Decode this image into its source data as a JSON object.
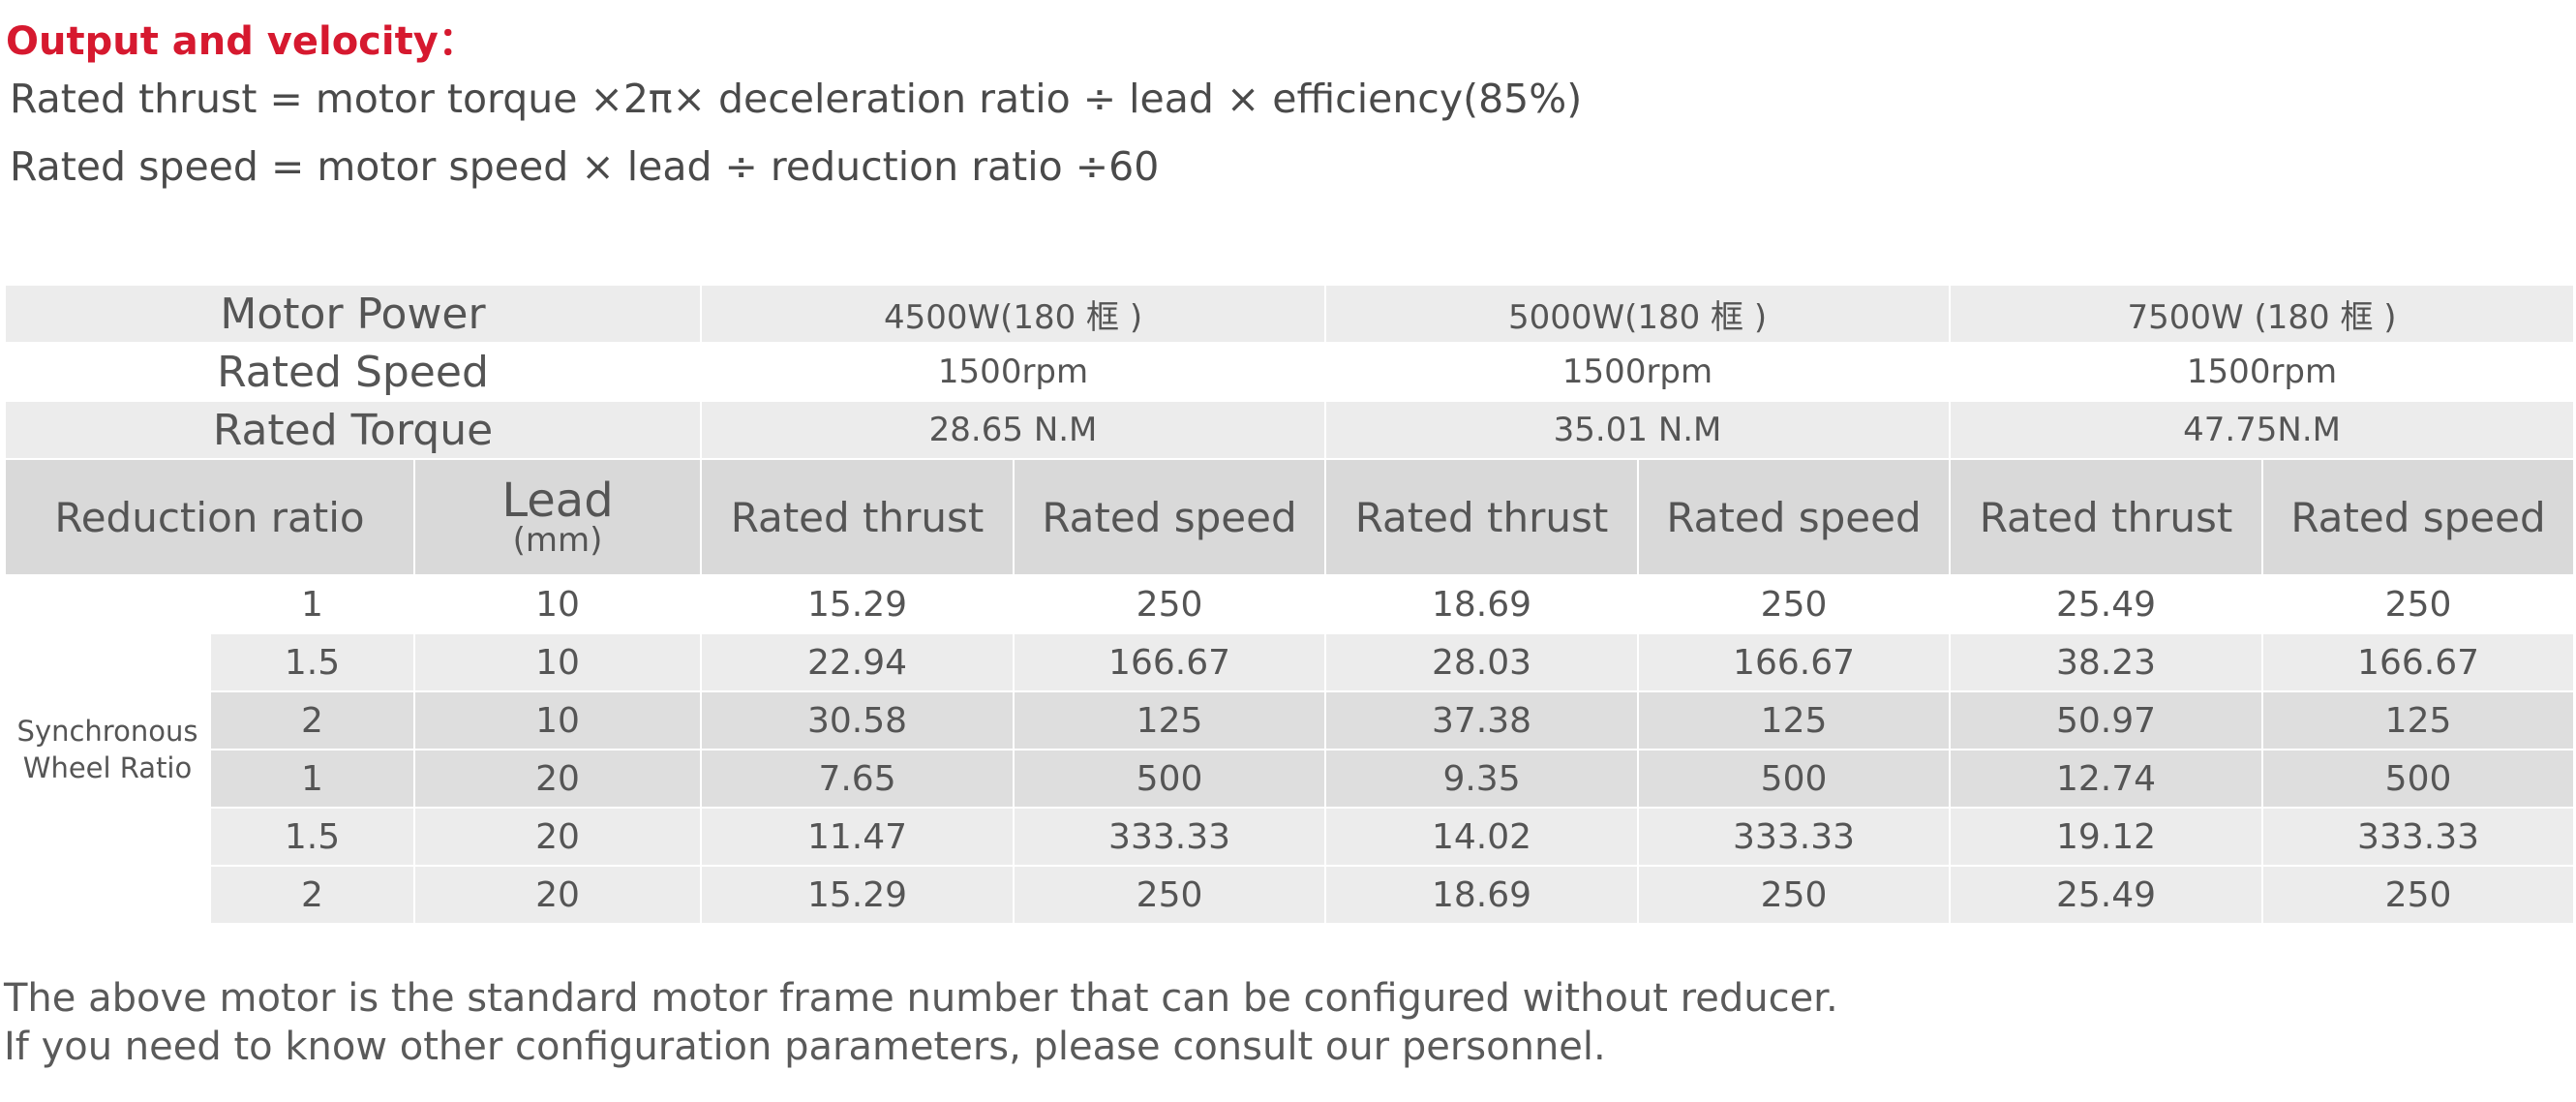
{
  "heading": "Output and velocity：",
  "formulas": [
    "Rated thrust = motor torque ×2π× deceleration ratio ÷ lead × efficiency(85%)",
    "Rated speed = motor speed × lead ÷ reduction ratio ÷60"
  ],
  "table": {
    "header_rows": [
      {
        "label": "Motor Power",
        "values": [
          "4500W(180 框 )",
          "5000W(180 框 )",
          "7500W (180 框 )"
        ]
      },
      {
        "label": "Rated Speed",
        "values": [
          "1500rpm",
          "1500rpm",
          "1500rpm"
        ]
      },
      {
        "label": "Rated Torque",
        "values": [
          "28.65 N.M",
          "35.01 N.M",
          "47.75N.M"
        ]
      }
    ],
    "column_headers": {
      "reduction_ratio": "Reduction ratio",
      "lead": "Lead",
      "lead_unit": "(mm)",
      "rated_thrust": "Rated thrust",
      "rated_speed": "Rated speed"
    },
    "group_label": "Synchronous Wheel Ratio",
    "rows": [
      [
        "1",
        "10",
        "15.29",
        "250",
        "18.69",
        "250",
        "25.49",
        "250"
      ],
      [
        "1.5",
        "10",
        "22.94",
        "166.67",
        "28.03",
        "166.67",
        "38.23",
        "166.67"
      ],
      [
        "2",
        "10",
        "30.58",
        "125",
        "37.38",
        "125",
        "50.97",
        "125"
      ],
      [
        "1",
        "20",
        "7.65",
        "500",
        "9.35",
        "500",
        "12.74",
        "500"
      ],
      [
        "1.5",
        "20",
        "11.47",
        "333.33",
        "14.02",
        "333.33",
        "19.12",
        "333.33"
      ],
      [
        "2",
        "20",
        "15.29",
        "250",
        "18.69",
        "250",
        "25.49",
        "250"
      ]
    ]
  },
  "notes": [
    "The above motor is the standard motor frame number that can be configured without reducer.",
    "If you need to know other configuration parameters, please consult our personnel."
  ]
}
